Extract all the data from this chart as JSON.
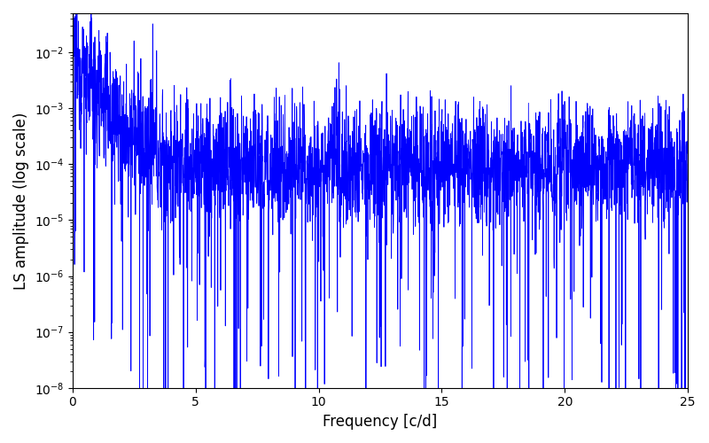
{
  "title": "",
  "xlabel": "Frequency [c/d]",
  "ylabel": "LS amplitude (log scale)",
  "xlim": [
    0,
    25
  ],
  "ylim": [
    1e-08,
    0.05
  ],
  "line_color": "#0000ff",
  "line_width": 0.6,
  "figsize": [
    8.0,
    5.0
  ],
  "dpi": 100,
  "seed": 12345,
  "n_points": 3000,
  "base_level": 0.0001,
  "low_freq_boost": 0.008,
  "decay_rate": 1.5,
  "noise_std_low": 0.6,
  "noise_std_high": 0.5,
  "n_dips": 150,
  "dip_strength_min": 1e-05,
  "dip_strength_max": 0.05
}
